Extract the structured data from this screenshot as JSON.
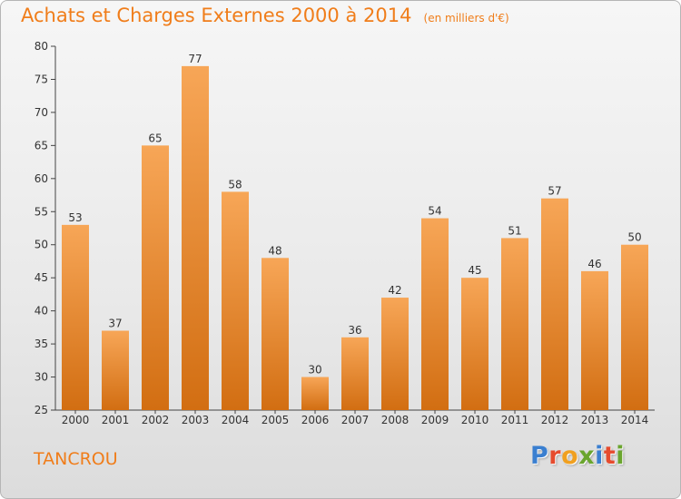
{
  "header": {
    "title": "Achats et Charges Externes 2000 à 2014",
    "unit": "(en milliers d'€)"
  },
  "footer": {
    "commune": "TANCROU",
    "logo_text": "Proxiti",
    "logo_colors": [
      "#3a7fd0",
      "#e64b2e",
      "#f0a020",
      "#6aa52e",
      "#3a7fd0",
      "#e64b2e",
      "#6aa52e"
    ]
  },
  "colors": {
    "bar_top": "#f7a657",
    "bar_bottom": "#d26e12",
    "accent": "#f07d1a",
    "axis": "#444444"
  },
  "chart_data": {
    "type": "bar",
    "title": "Achats et Charges Externes 2000 à 2014",
    "xlabel": "",
    "ylabel": "",
    "categories": [
      "2000",
      "2001",
      "2002",
      "2003",
      "2004",
      "2005",
      "2006",
      "2007",
      "2008",
      "2009",
      "2010",
      "2011",
      "2012",
      "2013",
      "2014"
    ],
    "values": [
      53,
      37,
      65,
      77,
      58,
      48,
      30,
      36,
      42,
      54,
      45,
      51,
      57,
      46,
      50
    ],
    "ylim": [
      25,
      80
    ],
    "yticks": [
      25,
      30,
      35,
      40,
      45,
      50,
      55,
      60,
      65,
      70,
      75,
      80
    ],
    "grid": false,
    "legend": "none"
  }
}
